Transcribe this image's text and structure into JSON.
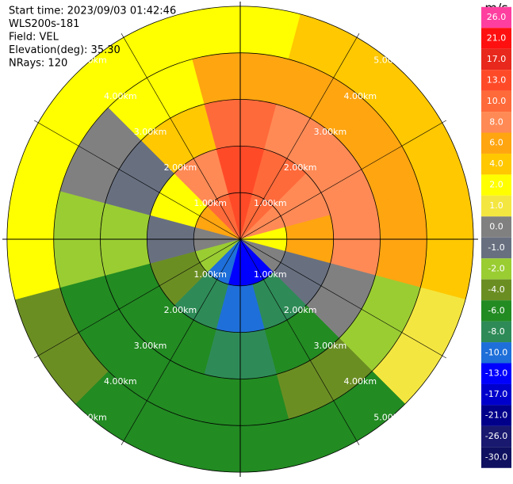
{
  "chart_data": {
    "type": "ppi",
    "info": [
      "Start time: 2023/09/03 01:42:46",
      "WLS200s-181",
      "Field: VEL",
      "Elevation(deg): 35.30",
      "NRays: 120"
    ],
    "azimuths": [
      0,
      30,
      60,
      90,
      120,
      150,
      180,
      210,
      240,
      270,
      300,
      330
    ],
    "ranges": [
      0.5,
      1.5,
      2.5,
      3.5,
      4.5
    ],
    "values": [
      [
        13,
        13,
        10,
        6,
        2
      ],
      [
        10,
        10,
        8,
        6,
        4
      ],
      [
        8,
        8,
        8,
        6,
        4
      ],
      [
        2,
        6,
        8,
        6,
        4
      ],
      [
        0,
        -1,
        0,
        -2,
        1
      ],
      [
        -13,
        -8,
        -6,
        -4,
        -6
      ],
      [
        -13,
        -10,
        -8,
        -6,
        -6
      ],
      [
        -10,
        -8,
        -6,
        -6,
        -6
      ],
      [
        -2,
        -4,
        -6,
        -6,
        -4
      ],
      [
        0,
        -1,
        -2,
        -2,
        2
      ],
      [
        6,
        2,
        -1,
        0,
        2
      ],
      [
        10,
        8,
        4,
        2,
        2
      ]
    ],
    "rlim": [
      0,
      5.1
    ],
    "rings": [
      {
        "value": 1,
        "label": "1.00km"
      },
      {
        "value": 2,
        "label": "2.00km"
      },
      {
        "value": 3,
        "label": "3.00km"
      },
      {
        "value": 4,
        "label": "4.00km"
      },
      {
        "value": 5,
        "label": "5.00km"
      }
    ],
    "colorbar": {
      "label": "m/s",
      "ticks": [
        {
          "value": 26,
          "label": "26.0"
        },
        {
          "value": 21,
          "label": "21.0"
        },
        {
          "value": 17,
          "label": "17.0"
        },
        {
          "value": 13,
          "label": "13.0"
        },
        {
          "value": 10,
          "label": "10.0"
        },
        {
          "value": 8,
          "label": "8.0"
        },
        {
          "value": 6,
          "label": "6.0"
        },
        {
          "value": 4,
          "label": "4.0"
        },
        {
          "value": 2,
          "label": "2.0"
        },
        {
          "value": 1,
          "label": "1.0"
        },
        {
          "value": 0,
          "label": "0.0"
        },
        {
          "value": -1,
          "label": "-1.0"
        },
        {
          "value": -2,
          "label": "-2.0"
        },
        {
          "value": -4,
          "label": "-4.0"
        },
        {
          "value": -6,
          "label": "-6.0"
        },
        {
          "value": -8,
          "label": "-8.0"
        },
        {
          "value": -10,
          "label": "-10.0"
        },
        {
          "value": -13,
          "label": "-13.0"
        },
        {
          "value": -17,
          "label": "-17.0"
        },
        {
          "value": -21,
          "label": "-21.0"
        },
        {
          "value": -26,
          "label": "-26.0"
        },
        {
          "value": -30,
          "label": "-30.0"
        }
      ],
      "colors": [
        "#ff3fa0",
        "#ff1010",
        "#e8281c",
        "#ff4a28",
        "#ff6a3a",
        "#ff8a55",
        "#ffa510",
        "#ffc800",
        "#ffff00",
        "#f4e640",
        "#808080",
        "#687080",
        "#9acd32",
        "#6b8e23",
        "#228b22",
        "#2e8b57",
        "#1e6fd9",
        "#0000ff",
        "#0000cd",
        "#00008b",
        "#191970",
        "#101060"
      ]
    }
  }
}
